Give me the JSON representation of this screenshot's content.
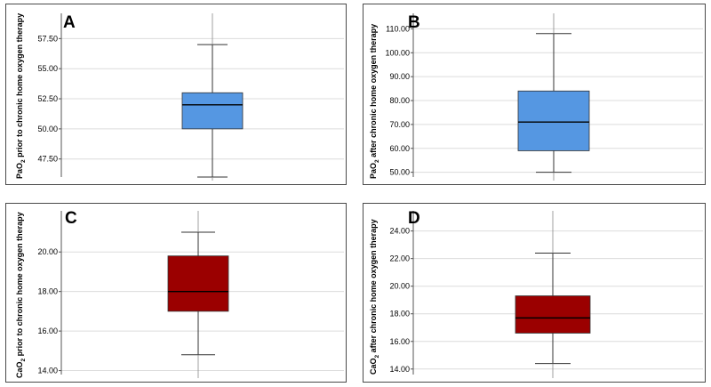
{
  "chart_data": [
    {
      "type": "box",
      "panel_label": "A",
      "ylabel_prefix": "PaO",
      "ylabel_sub": "2",
      "ylabel_suffix": " prior to chronic home oxygen therapy",
      "ylim": [
        46,
        59.3
      ],
      "yticks": [
        47.5,
        50,
        52.5,
        55,
        57.5
      ],
      "tick_labels": [
        "47.50",
        "50.00",
        "52.50",
        "55.00",
        "57.50"
      ],
      "grid": true,
      "box": {
        "min": 46.0,
        "q1": 50.0,
        "median": 52.0,
        "q3": 53.0,
        "max": 57.0
      },
      "color": "#5597e2"
    },
    {
      "type": "box",
      "panel_label": "B",
      "ylabel_prefix": "PaO",
      "ylabel_sub": "2",
      "ylabel_suffix": " after chronic home oxygen therapy",
      "ylim": [
        48,
        115
      ],
      "yticks": [
        50,
        60,
        70,
        80,
        90,
        100,
        110
      ],
      "tick_labels": [
        "50.00",
        "60.00",
        "70.00",
        "80.00",
        "90.00",
        "100.00",
        "110.00"
      ],
      "grid": true,
      "box": {
        "min": 50.0,
        "q1": 59.0,
        "median": 71.0,
        "q3": 84.0,
        "max": 108.0
      },
      "color": "#5597e2"
    },
    {
      "type": "box",
      "panel_label": "C",
      "ylabel_prefix": "CaO",
      "ylabel_sub": "2",
      "ylabel_suffix": " prior to chronic home oxygen therapy",
      "ylim": [
        13.8,
        21.9
      ],
      "yticks": [
        14,
        16,
        18,
        20
      ],
      "tick_labels": [
        "14.00",
        "16.00",
        "18.00",
        "20.00"
      ],
      "grid": true,
      "box": {
        "min": 14.8,
        "q1": 17.0,
        "median": 18.0,
        "q3": 19.8,
        "max": 21.0
      },
      "color": "#9b0000"
    },
    {
      "type": "box",
      "panel_label": "D",
      "ylabel_prefix": "CaO",
      "ylabel_sub": "2",
      "ylabel_suffix": " after chronic home oxygen therapy",
      "ylim": [
        13.6,
        25.2
      ],
      "yticks": [
        14,
        16,
        18,
        20,
        22,
        24
      ],
      "tick_labels": [
        "14.00",
        "16.00",
        "18.00",
        "20.00",
        "22.00",
        "24.00"
      ],
      "grid": true,
      "box": {
        "min": 14.4,
        "q1": 16.6,
        "median": 17.7,
        "q3": 19.3,
        "max": 22.4
      },
      "color": "#9b0000"
    }
  ]
}
